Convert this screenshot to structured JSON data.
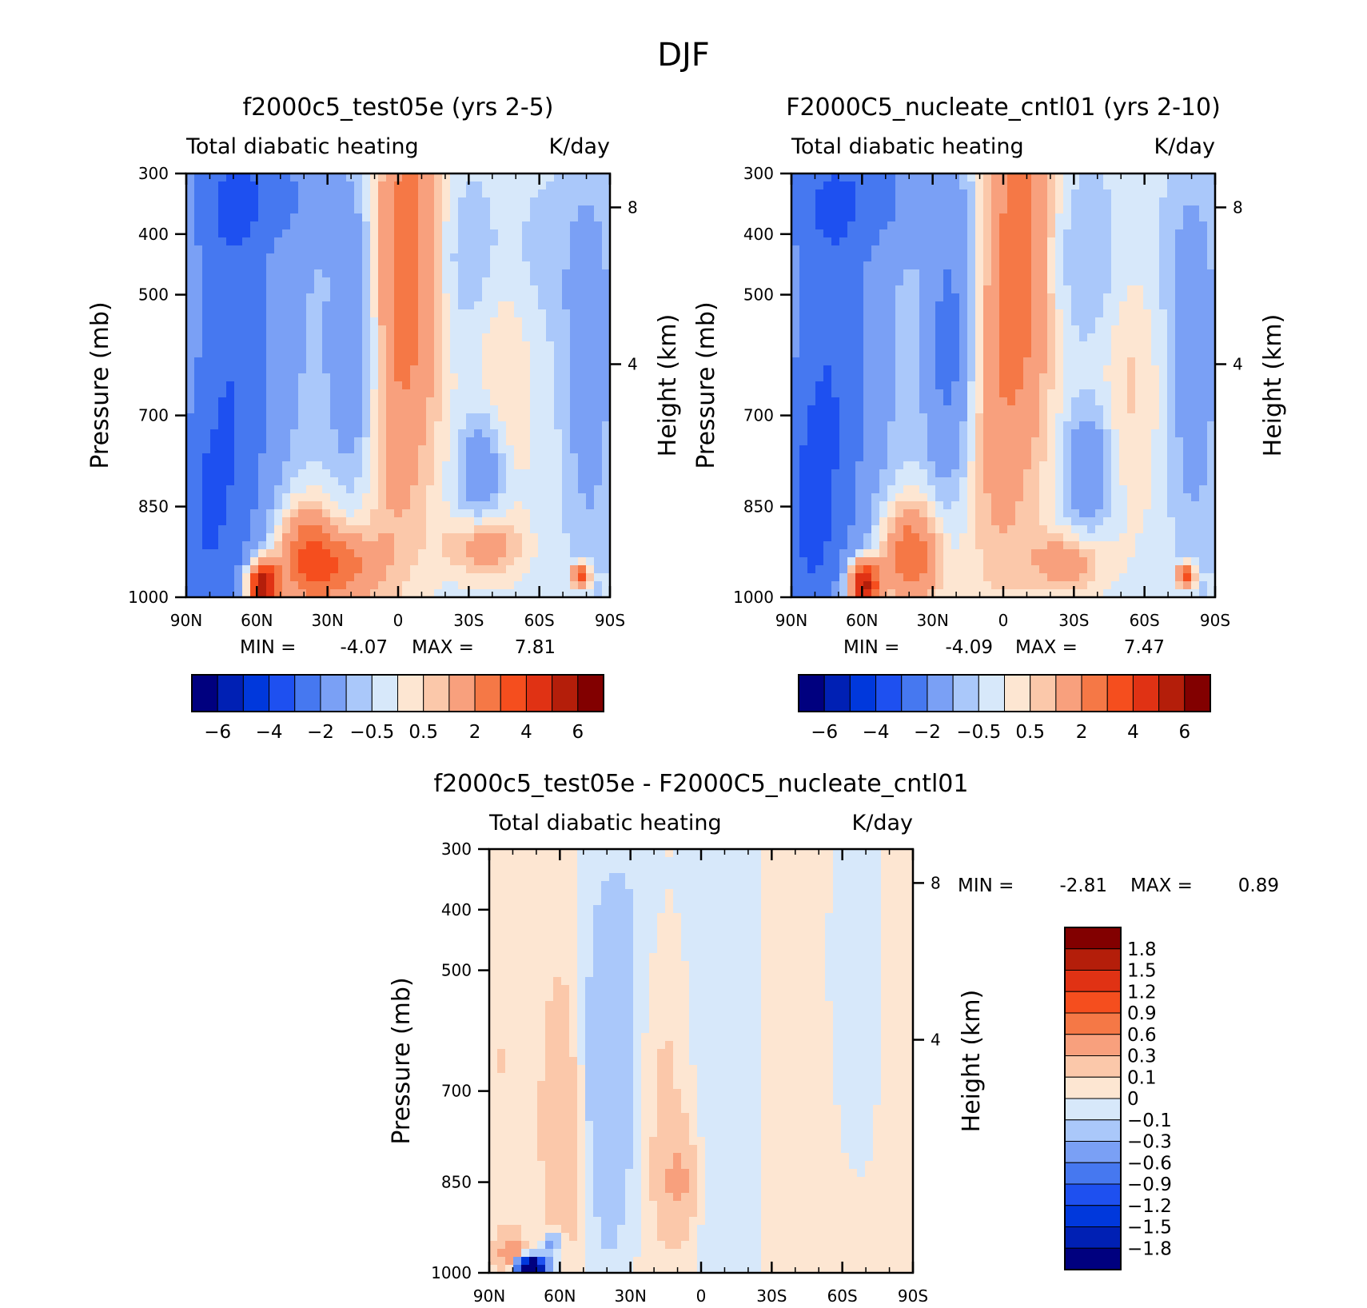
{
  "figure": {
    "title": "DJF"
  },
  "chart_data": [
    {
      "type": "heatmap",
      "id": "p1",
      "title": "f2000c5_test05e (yrs 2-5)",
      "left_label": "Total diabatic heating",
      "right_label": "K/day",
      "xlabel": "",
      "ylabel": "Pressure (mb)",
      "y2label": "Height (km)",
      "x_ticks": [
        "90N",
        "60N",
        "30N",
        "0",
        "30S",
        "60S",
        "90S"
      ],
      "y_ticks": [
        "300",
        "400",
        "500",
        "700",
        "850",
        "1000"
      ],
      "y2_ticks": [
        "8",
        "4"
      ],
      "ylim": [
        1000,
        300
      ],
      "stats": {
        "min_label": "MIN =",
        "min": "-4.07",
        "max_label": "MAX =",
        "max": "7.81"
      },
      "colorbar": {
        "orientation": "horizontal",
        "tick_labels": [
          "-6",
          "-4",
          "-2",
          "-0.5",
          "0.5",
          "2",
          "4",
          "6"
        ],
        "colors": [
          "#00007f",
          "#0020b4",
          "#0038dc",
          "#1e50f0",
          "#4678f0",
          "#7aa0f5",
          "#aac8fa",
          "#d7e8fa",
          "#fde6d2",
          "#fbc8aa",
          "#f8a07d",
          "#f57846",
          "#f54e1e",
          "#e03214",
          "#b41e0a",
          "#820000"
        ]
      },
      "field": {
        "centers": [
          {
            "x": 0.11,
            "y": 0.5,
            "v": -2.6,
            "sx": 0.08,
            "sy": 0.45
          },
          {
            "x": 0.03,
            "y": 0.85,
            "v": -1.5,
            "sx": 0.05,
            "sy": 0.2
          },
          {
            "x": 0.4,
            "y": 0.45,
            "v": -2.5,
            "sx": 0.05,
            "sy": 0.25
          },
          {
            "x": 0.33,
            "y": 0.3,
            "v": -1.0,
            "sx": 0.06,
            "sy": 0.35
          },
          {
            "x": 0.15,
            "y": 0.05,
            "v": -1.5,
            "sx": 0.15,
            "sy": 0.1
          },
          {
            "x": 0.34,
            "y": 0.28,
            "v": 1.0,
            "sx": 0.04,
            "sy": 0.35
          },
          {
            "x": 0.52,
            "y": 0.15,
            "v": 3.0,
            "sx": 0.06,
            "sy": 0.25
          },
          {
            "x": 0.47,
            "y": 0.6,
            "v": 1.8,
            "sx": 0.08,
            "sy": 0.3
          },
          {
            "x": 0.18,
            "y": 0.97,
            "v": 7.0,
            "sx": 0.025,
            "sy": 0.04
          },
          {
            "x": 0.28,
            "y": 0.9,
            "v": 3.2,
            "sx": 0.05,
            "sy": 0.09
          },
          {
            "x": 0.37,
            "y": 0.93,
            "v": 2.4,
            "sx": 0.06,
            "sy": 0.06
          },
          {
            "x": 0.7,
            "y": 0.88,
            "v": 1.8,
            "sx": 0.06,
            "sy": 0.05
          },
          {
            "x": 0.75,
            "y": 0.42,
            "v": 1.0,
            "sx": 0.05,
            "sy": 0.3
          },
          {
            "x": 0.7,
            "y": 0.7,
            "v": -1.8,
            "sx": 0.04,
            "sy": 0.1
          },
          {
            "x": 0.68,
            "y": 0.2,
            "v": -0.9,
            "sx": 0.15,
            "sy": 0.15
          },
          {
            "x": 0.95,
            "y": 0.45,
            "v": -1.3,
            "sx": 0.04,
            "sy": 0.3
          },
          {
            "x": 0.93,
            "y": 0.95,
            "v": 4.0,
            "sx": 0.015,
            "sy": 0.02
          }
        ],
        "bias": -0.3
      }
    },
    {
      "type": "heatmap",
      "id": "p2",
      "title": "F2000C5_nucleate_cntl01 (yrs 2-10)",
      "left_label": "Total diabatic heating",
      "right_label": "K/day",
      "xlabel": "",
      "ylabel": "Pressure (mb)",
      "y2label": "Height (km)",
      "x_ticks": [
        "90N",
        "60N",
        "30N",
        "0",
        "30S",
        "60S",
        "90S"
      ],
      "y_ticks": [
        "300",
        "400",
        "500",
        "700",
        "850",
        "1000"
      ],
      "y2_ticks": [
        "8",
        "4"
      ],
      "ylim": [
        1000,
        300
      ],
      "stats": {
        "min_label": "MIN =",
        "min": "-4.09",
        "max_label": "MAX =",
        "max": "7.47"
      },
      "colorbar": {
        "orientation": "horizontal",
        "tick_labels": [
          "-6",
          "-4",
          "-2",
          "-0.5",
          "0.5",
          "2",
          "4",
          "6"
        ],
        "colors": [
          "#00007f",
          "#0020b4",
          "#0038dc",
          "#1e50f0",
          "#4678f0",
          "#7aa0f5",
          "#aac8fa",
          "#d7e8fa",
          "#fde6d2",
          "#fbc8aa",
          "#f8a07d",
          "#f57846",
          "#f54e1e",
          "#e03214",
          "#b41e0a",
          "#820000"
        ]
      },
      "field": {
        "centers": [
          {
            "x": 0.09,
            "y": 0.5,
            "v": -2.6,
            "sx": 0.08,
            "sy": 0.45
          },
          {
            "x": 0.03,
            "y": 0.85,
            "v": -1.5,
            "sx": 0.05,
            "sy": 0.2
          },
          {
            "x": 0.38,
            "y": 0.45,
            "v": -2.4,
            "sx": 0.05,
            "sy": 0.25
          },
          {
            "x": 0.3,
            "y": 0.3,
            "v": -1.0,
            "sx": 0.06,
            "sy": 0.35
          },
          {
            "x": 0.15,
            "y": 0.05,
            "v": -1.5,
            "sx": 0.15,
            "sy": 0.1
          },
          {
            "x": 0.3,
            "y": 0.35,
            "v": 1.0,
            "sx": 0.04,
            "sy": 0.3
          },
          {
            "x": 0.54,
            "y": 0.15,
            "v": 3.0,
            "sx": 0.06,
            "sy": 0.25
          },
          {
            "x": 0.48,
            "y": 0.6,
            "v": 1.8,
            "sx": 0.08,
            "sy": 0.3
          },
          {
            "x": 0.17,
            "y": 0.97,
            "v": 6.6,
            "sx": 0.025,
            "sy": 0.04
          },
          {
            "x": 0.28,
            "y": 0.9,
            "v": 3.2,
            "sx": 0.05,
            "sy": 0.09
          },
          {
            "x": 0.65,
            "y": 0.92,
            "v": 1.8,
            "sx": 0.06,
            "sy": 0.05
          },
          {
            "x": 0.8,
            "y": 0.4,
            "v": 1.0,
            "sx": 0.05,
            "sy": 0.3
          },
          {
            "x": 0.7,
            "y": 0.7,
            "v": -1.8,
            "sx": 0.04,
            "sy": 0.1
          },
          {
            "x": 0.68,
            "y": 0.2,
            "v": -0.9,
            "sx": 0.15,
            "sy": 0.15
          },
          {
            "x": 0.95,
            "y": 0.45,
            "v": -1.3,
            "sx": 0.04,
            "sy": 0.3
          },
          {
            "x": 0.93,
            "y": 0.95,
            "v": 4.0,
            "sx": 0.015,
            "sy": 0.02
          }
        ],
        "bias": -0.3
      }
    },
    {
      "type": "heatmap",
      "id": "p3",
      "title": "f2000c5_test05e - F2000C5_nucleate_cntl01",
      "left_label": "Total diabatic heating",
      "right_label": "K/day",
      "xlabel": "",
      "ylabel": "Pressure (mb)",
      "y2label": "Height (km)",
      "x_ticks": [
        "90N",
        "60N",
        "30N",
        "0",
        "30S",
        "60S",
        "90S"
      ],
      "y_ticks": [
        "300",
        "400",
        "500",
        "700",
        "850",
        "1000"
      ],
      "y2_ticks": [
        "8",
        "4"
      ],
      "ylim": [
        1000,
        300
      ],
      "stats": {
        "min_label": "MIN =",
        "min": "-2.81",
        "max_label": "MAX =",
        "max": "0.89"
      },
      "colorbar": {
        "orientation": "vertical",
        "tick_labels": [
          "1.8",
          "1.5",
          "1.2",
          "0.9",
          "0.6",
          "0.3",
          "0.1",
          "0",
          "-0.1",
          "-0.3",
          "-0.6",
          "-0.9",
          "-1.2",
          "-1.5",
          "-1.8"
        ],
        "colors": [
          "#820000",
          "#b41e0a",
          "#e03214",
          "#f54e1e",
          "#f57846",
          "#f8a07d",
          "#fbc8aa",
          "#fde6d2",
          "#d7e8fa",
          "#aac8fa",
          "#7aa0f5",
          "#4678f0",
          "#1e50f0",
          "#0038dc",
          "#0020b4",
          "#00007f"
        ]
      },
      "field": {
        "centers": [
          {
            "x": 0.03,
            "y": 0.5,
            "v": 0.08,
            "sx": 0.05,
            "sy": 0.5
          },
          {
            "x": 0.18,
            "y": 0.65,
            "v": 0.2,
            "sx": 0.04,
            "sy": 0.3
          },
          {
            "x": 0.28,
            "y": 0.55,
            "v": -0.3,
            "sx": 0.05,
            "sy": 0.3
          },
          {
            "x": 0.38,
            "y": 0.15,
            "v": -0.1,
            "sx": 0.08,
            "sy": 0.2
          },
          {
            "x": 0.42,
            "y": 0.5,
            "v": 0.15,
            "sx": 0.05,
            "sy": 0.4
          },
          {
            "x": 0.45,
            "y": 0.78,
            "v": 0.3,
            "sx": 0.03,
            "sy": 0.08
          },
          {
            "x": 0.55,
            "y": 0.5,
            "v": -0.12,
            "sx": 0.08,
            "sy": 0.5
          },
          {
            "x": 0.72,
            "y": 0.5,
            "v": 0.08,
            "sx": 0.06,
            "sy": 0.5
          },
          {
            "x": 0.86,
            "y": 0.3,
            "v": -0.08,
            "sx": 0.06,
            "sy": 0.3
          },
          {
            "x": 0.97,
            "y": 0.5,
            "v": 0.06,
            "sx": 0.03,
            "sy": 0.4
          },
          {
            "x": 0.1,
            "y": 0.985,
            "v": -2.8,
            "sx": 0.025,
            "sy": 0.015
          },
          {
            "x": 0.05,
            "y": 0.96,
            "v": 0.5,
            "sx": 0.02,
            "sy": 0.03
          },
          {
            "x": 0.15,
            "y": 0.93,
            "v": -0.5,
            "sx": 0.015,
            "sy": 0.02
          }
        ],
        "bias": 0.02
      }
    }
  ]
}
